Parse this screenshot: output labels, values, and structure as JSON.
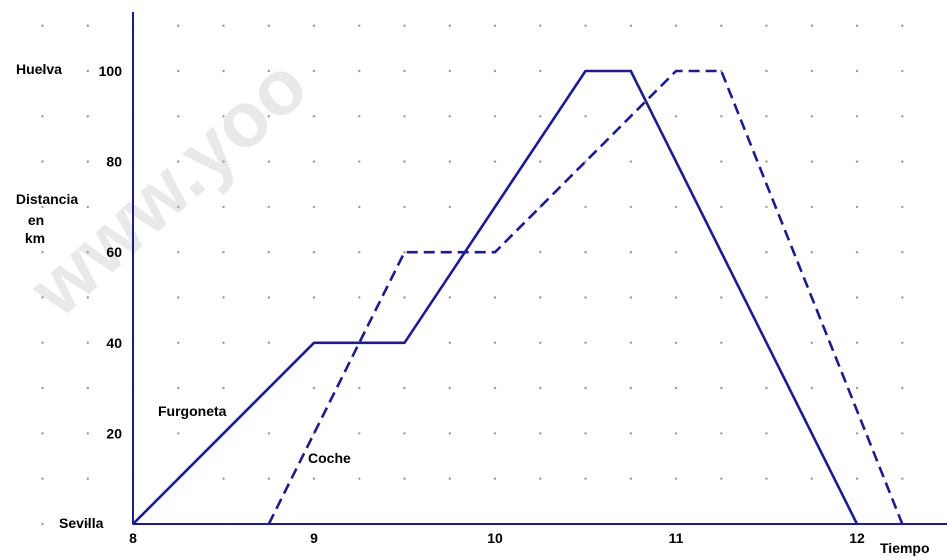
{
  "colors": {
    "axis": "#1c1c8c",
    "series": "#1c1c8c",
    "grid_dot": "#9a9a9a",
    "watermark": "#e9e9e9"
  },
  "watermark": "www.yoo",
  "chart_data": {
    "type": "line",
    "title": "",
    "xlabel": "Tiempo",
    "ylabel": "Distancia en km",
    "ylabel_lines": [
      "Distancia",
      "en",
      "km"
    ],
    "xlim": [
      8,
      12.5
    ],
    "ylim": [
      0,
      100
    ],
    "x_ticks": [
      8,
      9,
      10,
      11,
      12
    ],
    "y_ticks": [
      20,
      40,
      60,
      80,
      100
    ],
    "place_labels": {
      "top": "Huelva",
      "bottom": "Sevilla"
    },
    "grid": "dotted",
    "series": [
      {
        "name": "Furgoneta",
        "style": "solid",
        "x": [
          8,
          9,
          9.5,
          10.5,
          10.75,
          12
        ],
        "y": [
          0,
          40,
          40,
          100,
          100,
          0
        ]
      },
      {
        "name": "Coche",
        "style": "dashed",
        "x": [
          8.75,
          9.5,
          10,
          11,
          11.25,
          12.25
        ],
        "y": [
          0,
          60,
          60,
          100,
          100,
          0
        ]
      }
    ]
  }
}
